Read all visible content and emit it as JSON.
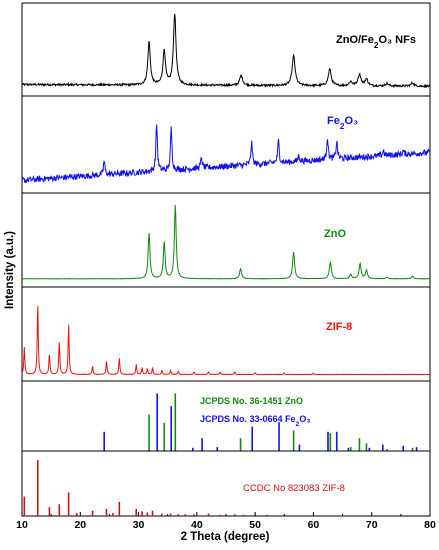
{
  "chart_data": {
    "type": "line",
    "xlabel": "2 Theta (degree)",
    "ylabel": "Intensity (a.u.)",
    "xlim": [
      10,
      80
    ],
    "xticks": [
      10,
      20,
      30,
      40,
      50,
      60,
      70,
      80
    ],
    "colors": {
      "black": "#000000",
      "blue": "#1010ee",
      "green": "#118811",
      "red": "#ee1111",
      "darkred": "#cc1111"
    },
    "panels": [
      {
        "kind": "line",
        "color": "black",
        "label": "ZnO/Fe₂O₃ NFs",
        "baseline_start": 0.09,
        "baseline_end": 0.07,
        "noise": 0.012,
        "peaks": [
          {
            "x": 31.8,
            "h": 0.52,
            "w": 0.25
          },
          {
            "x": 34.4,
            "h": 0.42,
            "w": 0.25
          },
          {
            "x": 36.2,
            "h": 0.86,
            "w": 0.26
          },
          {
            "x": 47.6,
            "h": 0.12,
            "w": 0.3
          },
          {
            "x": 56.6,
            "h": 0.36,
            "w": 0.3
          },
          {
            "x": 62.8,
            "h": 0.2,
            "w": 0.3
          },
          {
            "x": 66.4,
            "h": 0.05,
            "w": 0.3
          },
          {
            "x": 67.9,
            "h": 0.14,
            "w": 0.3
          },
          {
            "x": 69.1,
            "h": 0.08,
            "w": 0.3
          },
          {
            "x": 72.6,
            "h": 0.03,
            "w": 0.3
          },
          {
            "x": 77.0,
            "h": 0.04,
            "w": 0.3
          }
        ]
      },
      {
        "kind": "line",
        "color": "blue",
        "label": "Fe₂O₃",
        "baseline_start": 0.1,
        "baseline_end": 0.42,
        "noise": 0.035,
        "peaks": [
          {
            "x": 24.1,
            "h": 0.16,
            "w": 0.15
          },
          {
            "x": 33.1,
            "h": 0.55,
            "w": 0.15
          },
          {
            "x": 35.6,
            "h": 0.48,
            "w": 0.15
          },
          {
            "x": 40.8,
            "h": 0.12,
            "w": 0.15
          },
          {
            "x": 49.4,
            "h": 0.26,
            "w": 0.15
          },
          {
            "x": 54.0,
            "h": 0.26,
            "w": 0.15
          },
          {
            "x": 57.5,
            "h": 0.07,
            "w": 0.15
          },
          {
            "x": 62.4,
            "h": 0.26,
            "w": 0.15
          },
          {
            "x": 64.0,
            "h": 0.2,
            "w": 0.15
          },
          {
            "x": 72.0,
            "h": 0.06,
            "w": 0.15
          },
          {
            "x": 75.4,
            "h": 0.04,
            "w": 0.15
          }
        ]
      },
      {
        "kind": "line",
        "color": "green",
        "label": "ZnO",
        "baseline_start": 0.05,
        "baseline_end": 0.05,
        "noise": 0.002,
        "peaks": [
          {
            "x": 31.8,
            "h": 0.55,
            "w": 0.18
          },
          {
            "x": 34.4,
            "h": 0.44,
            "w": 0.18
          },
          {
            "x": 36.3,
            "h": 0.88,
            "w": 0.18
          },
          {
            "x": 47.5,
            "h": 0.12,
            "w": 0.2
          },
          {
            "x": 56.6,
            "h": 0.32,
            "w": 0.2
          },
          {
            "x": 62.9,
            "h": 0.2,
            "w": 0.2
          },
          {
            "x": 66.4,
            "h": 0.05,
            "w": 0.2
          },
          {
            "x": 68.0,
            "h": 0.18,
            "w": 0.2
          },
          {
            "x": 69.1,
            "h": 0.1,
            "w": 0.2
          },
          {
            "x": 72.6,
            "h": 0.02,
            "w": 0.2
          },
          {
            "x": 77.0,
            "h": 0.03,
            "w": 0.2
          }
        ]
      },
      {
        "kind": "line",
        "color": "red",
        "label": "ZIF-8",
        "baseline_start": 0.03,
        "baseline_end": 0.03,
        "noise": 0.002,
        "peaks": [
          {
            "x": 10.4,
            "h": 0.33,
            "w": 0.1
          },
          {
            "x": 12.7,
            "h": 0.85,
            "w": 0.1
          },
          {
            "x": 14.7,
            "h": 0.25,
            "w": 0.1
          },
          {
            "x": 16.4,
            "h": 0.4,
            "w": 0.1
          },
          {
            "x": 18.0,
            "h": 0.6,
            "w": 0.1
          },
          {
            "x": 22.1,
            "h": 0.1,
            "w": 0.1
          },
          {
            "x": 24.5,
            "h": 0.16,
            "w": 0.1
          },
          {
            "x": 26.7,
            "h": 0.2,
            "w": 0.1
          },
          {
            "x": 29.6,
            "h": 0.12,
            "w": 0.1
          },
          {
            "x": 30.6,
            "h": 0.08,
            "w": 0.1
          },
          {
            "x": 31.5,
            "h": 0.07,
            "w": 0.1
          },
          {
            "x": 32.4,
            "h": 0.08,
            "w": 0.1
          },
          {
            "x": 34.0,
            "h": 0.05,
            "w": 0.1
          },
          {
            "x": 35.5,
            "h": 0.05,
            "w": 0.1
          },
          {
            "x": 36.8,
            "h": 0.04,
            "w": 0.1
          },
          {
            "x": 39.5,
            "h": 0.03,
            "w": 0.1
          },
          {
            "x": 42.0,
            "h": 0.03,
            "w": 0.1
          },
          {
            "x": 44.0,
            "h": 0.025,
            "w": 0.1
          },
          {
            "x": 46.5,
            "h": 0.03,
            "w": 0.1
          },
          {
            "x": 50.0,
            "h": 0.02,
            "w": 0.1
          },
          {
            "x": 55.0,
            "h": 0.02,
            "w": 0.1
          },
          {
            "x": 60.0,
            "h": 0.015,
            "w": 0.1
          }
        ]
      },
      {
        "kind": "stick",
        "labels": [
          {
            "text": "JCPDS No. 36-1451 ZnO",
            "color": "green"
          },
          {
            "text": "JCPDS No. 33-0664 Fe₂O₃",
            "color": "blue"
          }
        ],
        "series": [
          {
            "color": "green",
            "sticks": [
              [
                31.8,
                0.57
              ],
              [
                34.4,
                0.44
              ],
              [
                36.3,
                0.9
              ],
              [
                47.5,
                0.2
              ],
              [
                56.6,
                0.32
              ],
              [
                62.9,
                0.28
              ],
              [
                66.4,
                0.06
              ],
              [
                67.9,
                0.2
              ],
              [
                69.1,
                0.12
              ],
              [
                72.6,
                0.03
              ],
              [
                77.0,
                0.05
              ]
            ]
          },
          {
            "color": "blue",
            "sticks": [
              [
                24.1,
                0.3
              ],
              [
                33.2,
                0.9
              ],
              [
                35.6,
                0.7
              ],
              [
                39.3,
                0.05
              ],
              [
                40.9,
                0.2
              ],
              [
                43.5,
                0.06
              ],
              [
                49.5,
                0.38
              ],
              [
                54.1,
                0.45
              ],
              [
                57.6,
                0.1
              ],
              [
                62.5,
                0.3
              ],
              [
                64.0,
                0.3
              ],
              [
                66.0,
                0.05
              ],
              [
                69.6,
                0.05
              ],
              [
                71.9,
                0.1
              ],
              [
                75.4,
                0.08
              ],
              [
                77.7,
                0.06
              ]
            ]
          }
        ]
      },
      {
        "kind": "stick",
        "labels": [
          {
            "text": "CCDC No 823083 ZIF-8",
            "color": "darkred"
          }
        ],
        "series": [
          {
            "color": "darkred",
            "sticks": [
              [
                10.4,
                0.33
              ],
              [
                12.7,
                0.95
              ],
              [
                14.7,
                0.15
              ],
              [
                16.4,
                0.2
              ],
              [
                18.0,
                0.4
              ],
              [
                19.4,
                0.05
              ],
              [
                22.1,
                0.09
              ],
              [
                24.5,
                0.12
              ],
              [
                25.6,
                0.05
              ],
              [
                26.7,
                0.24
              ],
              [
                29.6,
                0.12
              ],
              [
                30.6,
                0.08
              ],
              [
                31.5,
                0.06
              ],
              [
                32.4,
                0.09
              ],
              [
                34.0,
                0.04
              ],
              [
                35.5,
                0.04
              ],
              [
                36.8,
                0.03
              ],
              [
                38.0,
                0.03
              ],
              [
                39.5,
                0.03
              ],
              [
                42.0,
                0.04
              ],
              [
                44.0,
                0.02
              ],
              [
                46.5,
                0.03
              ],
              [
                48.0,
                0.02
              ],
              [
                50.0,
                0.02
              ],
              [
                52.0,
                0.02
              ],
              [
                55.0,
                0.02
              ]
            ]
          }
        ]
      }
    ]
  }
}
